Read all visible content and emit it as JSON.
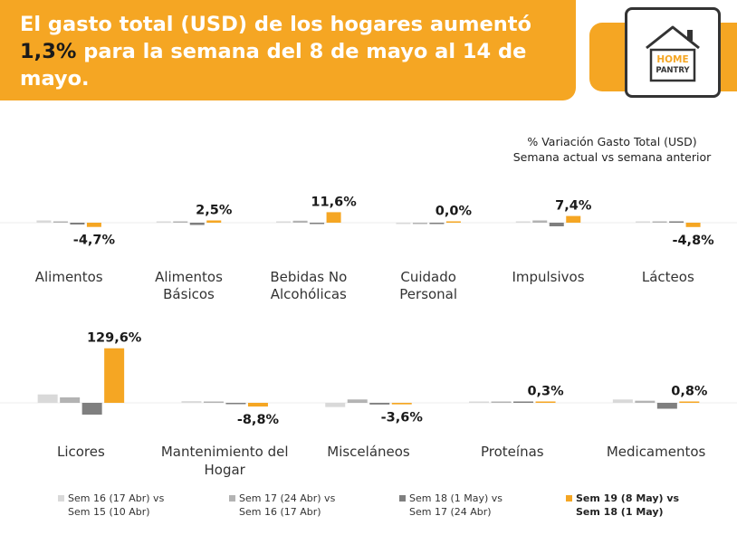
{
  "header": {
    "title_before": "El gasto total (USD) de los hogares aumentó ",
    "title_highlight": "1,3%",
    "title_after": " para la semana del 8 de mayo al 14 de mayo."
  },
  "logo": {
    "line1": "HOME",
    "line2": "PANTRY",
    "icon": "house-icon"
  },
  "colors": {
    "banner": "#F5A623",
    "sem16": "#D9D9D9",
    "sem17": "#B3B3B3",
    "sem18": "#7F7F7F",
    "sem19": "#F5A623"
  },
  "chart_data": {
    "type": "bar",
    "title": "% Variación Gasto Total (USD)",
    "subtitle": "Semana actual vs semana anterior",
    "series": [
      {
        "name": "Sem 16 (17 Abr) vs Sem 15 (10 Abr)",
        "color": "#D9D9D9"
      },
      {
        "name": "Sem 17 (24 Abr) vs Sem 16 (17 Abr)",
        "color": "#B3B3B3"
      },
      {
        "name": "Sem 18 (1 May) vs Sem 17 (24 Abr)",
        "color": "#7F7F7F"
      },
      {
        "name": "Sem 19 (8 May) vs Sem 18 (1 May)",
        "color": "#F5A623"
      }
    ],
    "panels": [
      {
        "categories": [
          {
            "name": "Alimentos",
            "values": [
              2.5,
              0.5,
              -2.0,
              -4.7
            ],
            "label": "-4,7%"
          },
          {
            "name": "Alimentos Básicos",
            "values": [
              0.3,
              0.2,
              -2.5,
              2.5
            ],
            "label": "2,5%"
          },
          {
            "name": "Bebidas No Alcohólicas",
            "values": [
              1.5,
              2.2,
              -1.5,
              11.6
            ],
            "label": "11,6%"
          },
          {
            "name": "Cuidado Personal",
            "values": [
              -0.5,
              -1.5,
              -1.2,
              0.0
            ],
            "label": "0,0%"
          },
          {
            "name": "Impulsivos",
            "values": [
              0.5,
              2.5,
              -4.0,
              7.4
            ],
            "label": "7,4%"
          },
          {
            "name": "Lácteos",
            "values": [
              0.5,
              0.8,
              0.3,
              -4.8
            ],
            "label": "-4,8%"
          }
        ]
      },
      {
        "categories": [
          {
            "name": "Licores",
            "values": [
              20.0,
              13.0,
              -28.0,
              129.6
            ],
            "label": "129,6%"
          },
          {
            "name": "Mantenimiento del Hogar",
            "values": [
              4.0,
              2.0,
              -1.5,
              -8.8
            ],
            "label": "-8,8%"
          },
          {
            "name": "Misceláneos",
            "values": [
              -10.0,
              8.0,
              -4.0,
              -3.6
            ],
            "label": "-3,6%"
          },
          {
            "name": "Proteínas",
            "values": [
              1.0,
              2.0,
              1.5,
              0.3
            ],
            "label": "0,3%"
          },
          {
            "name": "Medicamentos",
            "values": [
              8.0,
              5.0,
              -14.0,
              0.8
            ],
            "label": "0,8%"
          }
        ]
      }
    ],
    "legend": [
      {
        "line1": "Sem 16 (17 Abr) vs",
        "line2": "Sem 15 (10 Abr)"
      },
      {
        "line1": "Sem 17 (24 Abr) vs",
        "line2": "Sem 16 (17 Abr)"
      },
      {
        "line1": "Sem 18 (1 May) vs",
        "line2": "Sem 17 (24 Abr)"
      },
      {
        "line1": "Sem 19 (8 May) vs",
        "line2": "Sem 18 (1 May)"
      }
    ],
    "legend_position": "bottom"
  }
}
